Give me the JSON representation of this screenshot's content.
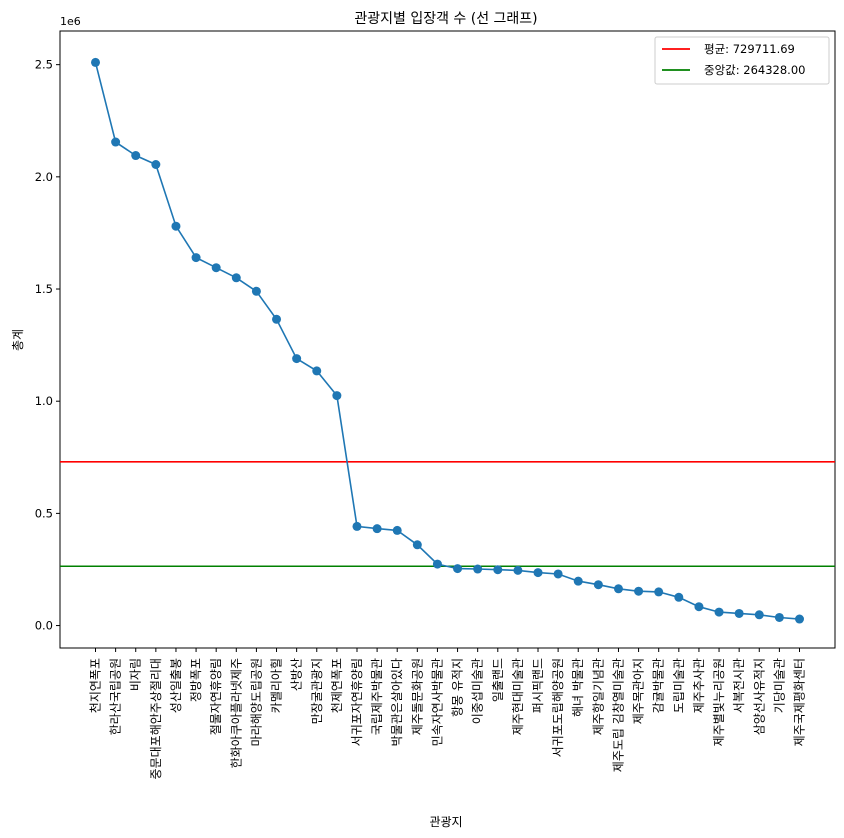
{
  "chart_data": {
    "type": "line",
    "title": "관광지별 입장객 수 (선 그래프)",
    "xlabel": "관광지",
    "ylabel": "총계",
    "y_offset_label": "1e6",
    "ylim": [
      -0.1,
      2.65
    ],
    "y_ticks": [
      0.0,
      0.5,
      1.0,
      1.5,
      2.0,
      2.5
    ],
    "y_tick_labels": [
      "0.0",
      "0.5",
      "1.0",
      "1.5",
      "2.0",
      "2.5"
    ],
    "legend_position": "top-right",
    "grid": false,
    "colors": {
      "series": "#1f77b4",
      "mean": "#ff0000",
      "median": "#008000"
    },
    "series": [
      {
        "values": [
          2510000,
          2155000,
          2095000,
          2055000,
          1780000,
          1640000,
          1595000,
          1550000,
          1490000,
          1365000,
          1190000,
          1135000,
          1025000,
          442000,
          432000,
          424000,
          360000,
          274000,
          254000,
          252000,
          249000,
          246000,
          236000,
          230000,
          198000,
          182000,
          164000,
          153000,
          150000,
          126000,
          84000,
          60000,
          54000,
          48000,
          36000,
          29000
        ]
      }
    ],
    "categories": [
      "천지연폭포",
      "한라산국립공원",
      "비자림",
      "중문대포해안주상절리대",
      "성산일출봉",
      "정방폭포",
      "절물자연휴양림",
      "한화아쿠아플라넷제주",
      "마라해양도립공원",
      "카멜리아힐",
      "산방산",
      "만장굴관광지",
      "천제연폭포",
      "서귀포자연휴양림",
      "국립제주박물관",
      "박물관은살아있다",
      "제주돌문화공원",
      "민속자연사박물관",
      "항몽 유적지",
      "이중섭미술관",
      "일출랜드",
      "제주현대미술관",
      "퍼시픽랜드",
      "서귀포도립해양공원",
      "해녀 박물관",
      "제주항일기념관",
      "제주도립 김창열미술관",
      "제주목관아지",
      "감귤박물관",
      "도립미술관",
      "제주추사관",
      "제주별빛누리공원",
      "서복전시관",
      "삼양선사유적지",
      "기당미술관",
      "제주국제평화센터"
    ],
    "reference_lines": [
      {
        "name": "평균: 729711.69",
        "value": 729711.69
      },
      {
        "name": "중앙값: 264328.00",
        "value": 264328.0
      }
    ]
  }
}
